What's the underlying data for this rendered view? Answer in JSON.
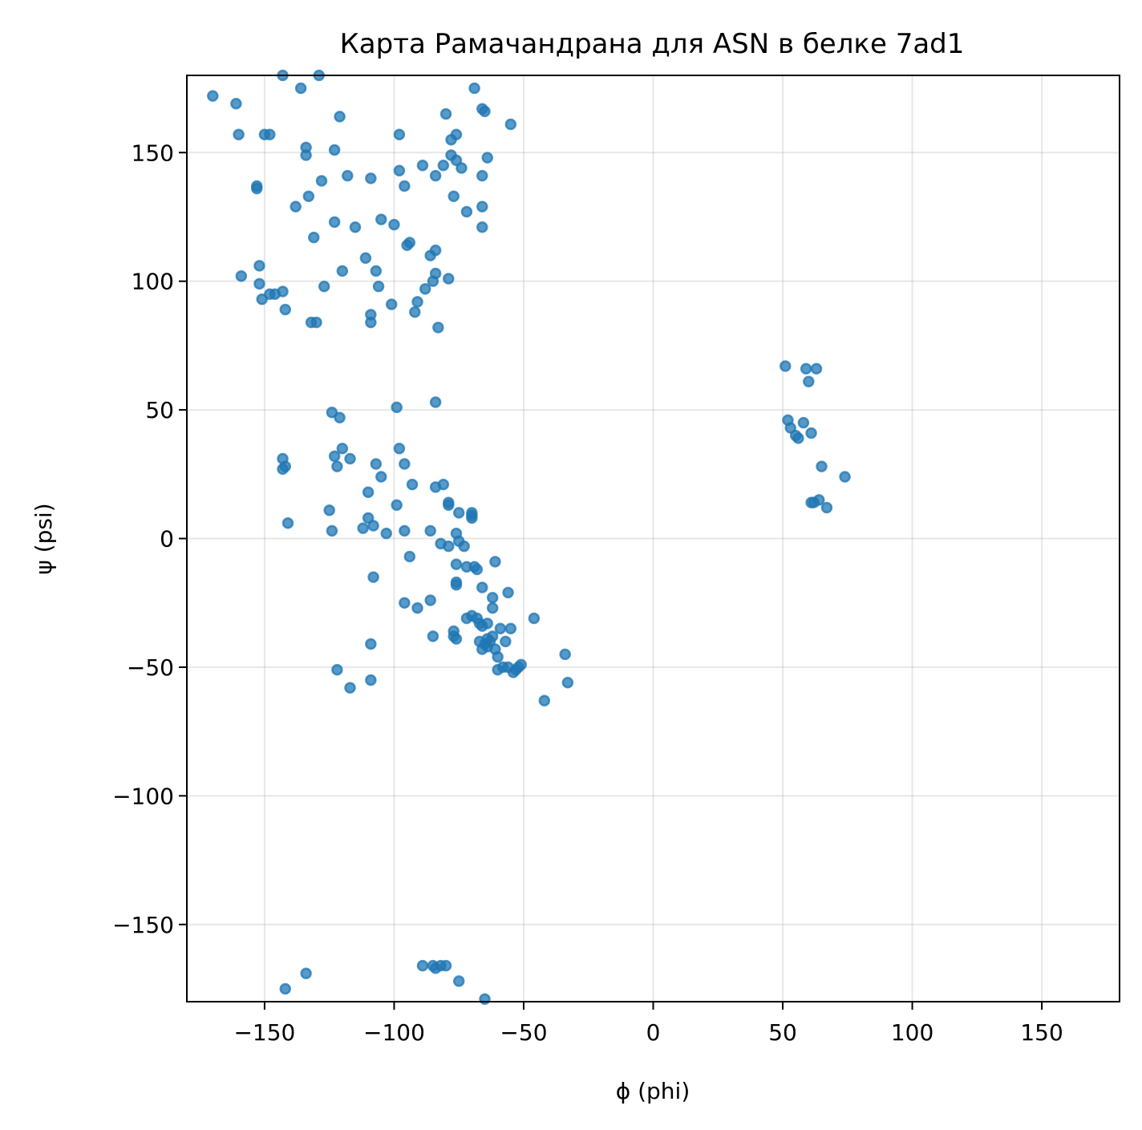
{
  "chart_data": {
    "type": "scatter",
    "title": "Карта Рамачандрана для ASN в белке 7ad1",
    "xlabel": "ϕ (phi)",
    "ylabel": "ψ (psi)",
    "xlim": [
      -180,
      180
    ],
    "ylim": [
      -180,
      180
    ],
    "xticks": [
      -150,
      -100,
      -50,
      0,
      50,
      100,
      150
    ],
    "yticks": [
      -150,
      -100,
      -50,
      0,
      50,
      100,
      150
    ],
    "xtick_labels": [
      "−150",
      "−100",
      "−50",
      "0",
      "50",
      "100",
      "150"
    ],
    "ytick_labels": [
      "−150",
      "−100",
      "−50",
      "0",
      "50",
      "100",
      "150"
    ],
    "grid": true,
    "color": "#1f77b4",
    "points": [
      [
        -170,
        172
      ],
      [
        -161,
        169
      ],
      [
        -160,
        157
      ],
      [
        -150,
        157
      ],
      [
        -148,
        157
      ],
      [
        -143,
        180
      ],
      [
        -136,
        175
      ],
      [
        -129,
        180
      ],
      [
        -121,
        164
      ],
      [
        -134,
        152
      ],
      [
        -134,
        149
      ],
      [
        -123,
        151
      ],
      [
        -128,
        139
      ],
      [
        -153,
        137
      ],
      [
        -153,
        136
      ],
      [
        -133,
        133
      ],
      [
        -138,
        129
      ],
      [
        -123,
        123
      ],
      [
        -131,
        117
      ],
      [
        -115,
        121
      ],
      [
        -118,
        141
      ],
      [
        -109,
        140
      ],
      [
        -105,
        124
      ],
      [
        -100,
        122
      ],
      [
        -98,
        157
      ],
      [
        -98,
        143
      ],
      [
        -96,
        137
      ],
      [
        -94,
        115
      ],
      [
        -95,
        114
      ],
      [
        -89,
        145
      ],
      [
        -84,
        141
      ],
      [
        -81,
        145
      ],
      [
        -80,
        165
      ],
      [
        -78,
        155
      ],
      [
        -78,
        149
      ],
      [
        -76,
        147
      ],
      [
        -76,
        157
      ],
      [
        -74,
        144
      ],
      [
        -77,
        133
      ],
      [
        -72,
        127
      ],
      [
        -66,
        129
      ],
      [
        -66,
        121
      ],
      [
        -66,
        141
      ],
      [
        -69,
        175
      ],
      [
        -66,
        167
      ],
      [
        -65,
        166
      ],
      [
        -55,
        161
      ],
      [
        -64,
        148
      ],
      [
        -152,
        106
      ],
      [
        -159,
        102
      ],
      [
        -152,
        99
      ],
      [
        -148,
        95
      ],
      [
        -146,
        95
      ],
      [
        -143,
        96
      ],
      [
        -142,
        89
      ],
      [
        -151,
        93
      ],
      [
        -127,
        98
      ],
      [
        -120,
        104
      ],
      [
        -111,
        109
      ],
      [
        -107,
        104
      ],
      [
        -106,
        98
      ],
      [
        -109,
        87
      ],
      [
        -109,
        84
      ],
      [
        -132,
        84
      ],
      [
        -130,
        84
      ],
      [
        -101,
        91
      ],
      [
        -91,
        92
      ],
      [
        -92,
        88
      ],
      [
        -88,
        97
      ],
      [
        -86,
        110
      ],
      [
        -84,
        112
      ],
      [
        -84,
        103
      ],
      [
        -85,
        100
      ],
      [
        -79,
        101
      ],
      [
        -83,
        82
      ],
      [
        -99,
        51
      ],
      [
        -84,
        53
      ],
      [
        -124,
        49
      ],
      [
        -121,
        47
      ],
      [
        -120,
        35
      ],
      [
        -123,
        32
      ],
      [
        -117,
        31
      ],
      [
        -143,
        31
      ],
      [
        -143,
        27
      ],
      [
        -142,
        28
      ],
      [
        -122,
        28
      ],
      [
        -107,
        29
      ],
      [
        -105,
        24
      ],
      [
        -98,
        35
      ],
      [
        -96,
        29
      ],
      [
        -93,
        21
      ],
      [
        -84,
        20
      ],
      [
        -81,
        21
      ],
      [
        -79,
        14
      ],
      [
        -79,
        13
      ],
      [
        -75,
        10
      ],
      [
        -70,
        10
      ],
      [
        -70,
        9
      ],
      [
        -70,
        8
      ],
      [
        -125,
        11
      ],
      [
        -110,
        18
      ],
      [
        -110,
        8
      ],
      [
        -108,
        5
      ],
      [
        -112,
        4
      ],
      [
        -103,
        2
      ],
      [
        -124,
        3
      ],
      [
        -141,
        6
      ],
      [
        -99,
        13
      ],
      [
        -96,
        3
      ],
      [
        -86,
        3
      ],
      [
        -82,
        -2
      ],
      [
        -79,
        -3
      ],
      [
        -76,
        2
      ],
      [
        -75,
        -1
      ],
      [
        -73,
        -3
      ],
      [
        -72,
        -11
      ],
      [
        -69,
        -11
      ],
      [
        -76,
        -10
      ],
      [
        -68,
        -12
      ],
      [
        -76,
        -17
      ],
      [
        -76,
        -18
      ],
      [
        -61,
        -9
      ],
      [
        -66,
        -19
      ],
      [
        -62,
        -23
      ],
      [
        -62,
        -27
      ],
      [
        -56,
        -21
      ],
      [
        -94,
        -7
      ],
      [
        -108,
        -15
      ],
      [
        -96,
        -25
      ],
      [
        -91,
        -27
      ],
      [
        -86,
        -24
      ],
      [
        -72,
        -31
      ],
      [
        -70,
        -30
      ],
      [
        -68,
        -31
      ],
      [
        -67,
        -33
      ],
      [
        -66,
        -34
      ],
      [
        -64,
        -33
      ],
      [
        -77,
        -36
      ],
      [
        -77,
        -38
      ],
      [
        -76,
        -39
      ],
      [
        -85,
        -38
      ],
      [
        -59,
        -35
      ],
      [
        -55,
        -35
      ],
      [
        -57,
        -40
      ],
      [
        -46,
        -31
      ],
      [
        -67,
        -40
      ],
      [
        -65,
        -41
      ],
      [
        -64,
        -42
      ],
      [
        -63,
        -40
      ],
      [
        -62,
        -38
      ],
      [
        -61,
        -43
      ],
      [
        -60,
        -46
      ],
      [
        -66,
        -43
      ],
      [
        -64,
        -39
      ],
      [
        -60,
        -51
      ],
      [
        -58,
        -50
      ],
      [
        -56,
        -50
      ],
      [
        -54,
        -52
      ],
      [
        -53,
        -51
      ],
      [
        -52,
        -50
      ],
      [
        -51,
        -49
      ],
      [
        -34,
        -45
      ],
      [
        -33,
        -56
      ],
      [
        -42,
        -63
      ],
      [
        -109,
        -41
      ],
      [
        -122,
        -51
      ],
      [
        -117,
        -58
      ],
      [
        -109,
        -55
      ],
      [
        -89,
        -166
      ],
      [
        -85,
        -166
      ],
      [
        -84,
        -167
      ],
      [
        -82,
        -166
      ],
      [
        -80,
        -166
      ],
      [
        -75,
        -172
      ],
      [
        -65,
        -179
      ],
      [
        -134,
        -169
      ],
      [
        -142,
        -175
      ],
      [
        51,
        67
      ],
      [
        59,
        66
      ],
      [
        60,
        61
      ],
      [
        63,
        66
      ],
      [
        52,
        46
      ],
      [
        53,
        43
      ],
      [
        55,
        40
      ],
      [
        56,
        39
      ],
      [
        58,
        45
      ],
      [
        61,
        41
      ],
      [
        65,
        28
      ],
      [
        74,
        24
      ],
      [
        61,
        14
      ],
      [
        62,
        14
      ],
      [
        64,
        15
      ],
      [
        67,
        12
      ]
    ]
  }
}
